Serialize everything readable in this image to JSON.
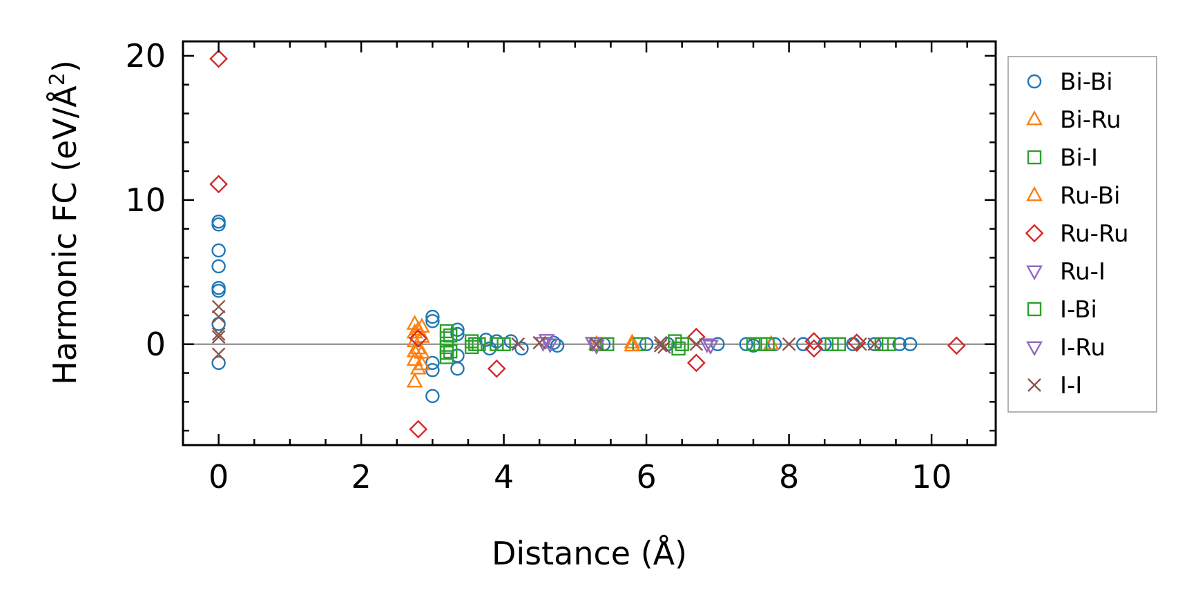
{
  "chart_data": {
    "type": "scatter",
    "xlabel": "Distance (Å)",
    "ylabel_main": "Harmonic FC (eV/Å",
    "ylabel_sup": "2",
    "ylabel_close": ")",
    "xlim": [
      -0.5,
      10.9
    ],
    "ylim": [
      -7,
      21
    ],
    "x_ticks": [
      0,
      2,
      4,
      6,
      8,
      10
    ],
    "x_tick_labels": [
      "0",
      "2",
      "4",
      "6",
      "8",
      "10"
    ],
    "y_ticks": [
      0,
      10,
      20
    ],
    "y_tick_labels": [
      "0",
      "10",
      "20"
    ],
    "x_minor_step": 0.5,
    "y_minor_step": 2,
    "reference_line_y": 0,
    "grid": false,
    "legend_position": "outside-right",
    "series": [
      {
        "name": "Bi-Bi",
        "marker": "circle",
        "color": "#1f77b4",
        "points": [
          [
            0,
            8.5
          ],
          [
            0,
            8.3
          ],
          [
            0,
            6.5
          ],
          [
            0,
            5.4
          ],
          [
            0,
            3.9
          ],
          [
            0,
            3.7
          ],
          [
            0,
            1.4
          ],
          [
            0,
            -1.3
          ],
          [
            3.0,
            1.9
          ],
          [
            3.0,
            1.6
          ],
          [
            3.0,
            -1.3
          ],
          [
            3.0,
            -1.8
          ],
          [
            3.0,
            -3.6
          ],
          [
            3.35,
            1.0
          ],
          [
            3.35,
            0.7
          ],
          [
            3.35,
            -0.8
          ],
          [
            3.35,
            -1.7
          ],
          [
            3.75,
            0.3
          ],
          [
            3.8,
            -0.3
          ],
          [
            3.9,
            0.2
          ],
          [
            4.1,
            0.2
          ],
          [
            4.25,
            -0.3
          ],
          [
            4.7,
            0.1
          ],
          [
            4.75,
            -0.1
          ],
          [
            5.4,
            0
          ],
          [
            6.0,
            0
          ],
          [
            6.3,
            0
          ],
          [
            7.0,
            0
          ],
          [
            7.4,
            0
          ],
          [
            7.5,
            -0.1
          ],
          [
            7.8,
            0
          ],
          [
            8.2,
            0
          ],
          [
            8.5,
            0
          ],
          [
            8.9,
            0
          ],
          [
            9.2,
            0
          ],
          [
            9.55,
            0
          ],
          [
            9.7,
            0
          ]
        ]
      },
      {
        "name": "Bi-Ru",
        "marker": "triangle-up",
        "color": "#ff7f0e",
        "points": [
          [
            2.75,
            1.4
          ],
          [
            2.75,
            0.8
          ],
          [
            2.75,
            0.2
          ],
          [
            2.75,
            -0.5
          ],
          [
            2.75,
            -1.1
          ],
          [
            2.75,
            -2.6
          ],
          [
            2.85,
            1.2
          ],
          [
            2.85,
            0.5
          ],
          [
            2.85,
            -0.6
          ],
          [
            2.85,
            -1.4
          ],
          [
            5.3,
            0
          ],
          [
            5.8,
            0.1
          ],
          [
            7.75,
            0
          ]
        ]
      },
      {
        "name": "Bi-I",
        "marker": "square",
        "color": "#2ca02c",
        "points": [
          [
            3.2,
            0.9
          ],
          [
            3.2,
            0.4
          ],
          [
            3.2,
            -0.2
          ],
          [
            3.2,
            -0.6
          ],
          [
            3.2,
            -0.9
          ],
          [
            3.55,
            0.2
          ],
          [
            3.55,
            -0.2
          ],
          [
            3.65,
            0
          ],
          [
            3.9,
            0
          ],
          [
            4.0,
            0
          ],
          [
            5.3,
            0
          ],
          [
            5.45,
            0
          ],
          [
            5.9,
            0
          ],
          [
            6.4,
            0.2
          ],
          [
            6.45,
            -0.3
          ],
          [
            7.5,
            0
          ],
          [
            7.7,
            0
          ],
          [
            8.6,
            0
          ],
          [
            8.7,
            0
          ],
          [
            9.3,
            0
          ],
          [
            9.4,
            0
          ]
        ]
      },
      {
        "name": "Ru-Bi",
        "marker": "triangle-up",
        "color": "#ff7f0e",
        "points": [
          [
            2.8,
            1.0
          ],
          [
            2.8,
            -0.3
          ],
          [
            2.8,
            -1.7
          ],
          [
            5.8,
            -0.1
          ]
        ]
      },
      {
        "name": "Ru-Ru",
        "marker": "diamond",
        "color": "#d62728",
        "points": [
          [
            0,
            19.8
          ],
          [
            0,
            11.1
          ],
          [
            2.8,
            0.4
          ],
          [
            2.8,
            -5.9
          ],
          [
            3.9,
            -1.7
          ],
          [
            6.7,
            0.5
          ],
          [
            6.7,
            -1.3
          ],
          [
            8.35,
            0.2
          ],
          [
            8.35,
            -0.3
          ],
          [
            8.95,
            0.1
          ],
          [
            10.35,
            -0.1
          ]
        ]
      },
      {
        "name": "Ru-I",
        "marker": "triangle-down",
        "color": "#9467bd",
        "points": [
          [
            4.6,
            0.3
          ],
          [
            4.65,
            0
          ],
          [
            5.25,
            0.1
          ],
          [
            6.85,
            0
          ]
        ]
      },
      {
        "name": "I-Bi",
        "marker": "square",
        "color": "#2ca02c",
        "points": [
          [
            3.25,
            0.6
          ],
          [
            3.25,
            -0.5
          ],
          [
            3.6,
            0
          ],
          [
            6.5,
            0
          ],
          [
            7.6,
            0
          ]
        ]
      },
      {
        "name": "I-Ru",
        "marker": "triangle-down",
        "color": "#9467bd",
        "points": [
          [
            4.55,
            0.1
          ],
          [
            5.3,
            -0.1
          ],
          [
            6.9,
            -0.1
          ]
        ]
      },
      {
        "name": "I-I",
        "marker": "x",
        "color": "#8c564b",
        "points": [
          [
            0,
            2.6
          ],
          [
            0,
            1.9
          ],
          [
            0,
            0.7
          ],
          [
            0,
            0.5
          ],
          [
            0,
            -0.7
          ],
          [
            4.2,
            0
          ],
          [
            4.5,
            0.1
          ],
          [
            5.3,
            0
          ],
          [
            6.2,
            0.1
          ],
          [
            6.2,
            -0.1
          ],
          [
            6.25,
            -0.2
          ],
          [
            6.7,
            0
          ],
          [
            8.0,
            0
          ],
          [
            9.0,
            0
          ],
          [
            9.2,
            0
          ]
        ]
      }
    ]
  }
}
